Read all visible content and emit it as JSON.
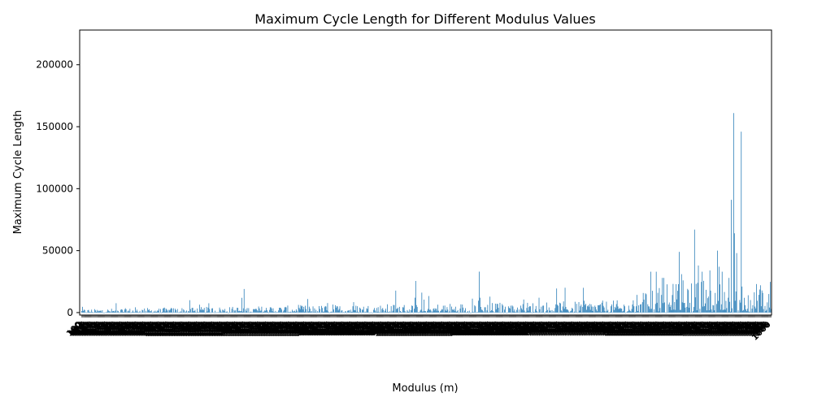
{
  "chart_data": {
    "type": "bar",
    "title": "Maximum Cycle Length for Different Modulus Values",
    "xlabel": "Modulus (m)",
    "ylabel": "Maximum Cycle Length",
    "ylim": [
      -2000,
      228000
    ],
    "yticks": [
      0,
      50000,
      100000,
      150000,
      200000
    ],
    "ytick_labels": [
      "0",
      "50000",
      "100000",
      "150000",
      "200000"
    ],
    "grid": false,
    "legend": "none",
    "bar_color": "#1f77b4",
    "x_range": [
      100,
      1000
    ],
    "x_ticks_rotated_deg": 45,
    "x_tick_labels_legible": false,
    "notable_bars": [
      {
        "m": 951,
        "value": 161000
      },
      {
        "m": 948,
        "value": 91000
      },
      {
        "m": 952,
        "value": 64000
      },
      {
        "m": 955,
        "value": 48000
      },
      {
        "m": 961,
        "value": 146000
      },
      {
        "m": 962,
        "value": 21000
      },
      {
        "m": 900,
        "value": 67000
      },
      {
        "m": 880,
        "value": 49000
      },
      {
        "m": 883,
        "value": 31000
      },
      {
        "m": 885,
        "value": 26000
      },
      {
        "m": 930,
        "value": 50000
      },
      {
        "m": 932,
        "value": 37000
      },
      {
        "m": 936,
        "value": 33000
      },
      {
        "m": 945,
        "value": 28000
      },
      {
        "m": 910,
        "value": 33000
      },
      {
        "m": 904,
        "value": 24000
      },
      {
        "m": 920,
        "value": 34000
      },
      {
        "m": 905,
        "value": 38000
      },
      {
        "m": 843,
        "value": 33000
      },
      {
        "m": 850,
        "value": 33000
      },
      {
        "m": 858,
        "value": 28000
      },
      {
        "m": 860,
        "value": 28000
      },
      {
        "m": 755,
        "value": 20000
      },
      {
        "m": 697,
        "value": 12000
      },
      {
        "m": 620,
        "value": 12000
      },
      {
        "m": 535,
        "value": 12000
      },
      {
        "m": 241,
        "value": 10000
      }
    ]
  }
}
